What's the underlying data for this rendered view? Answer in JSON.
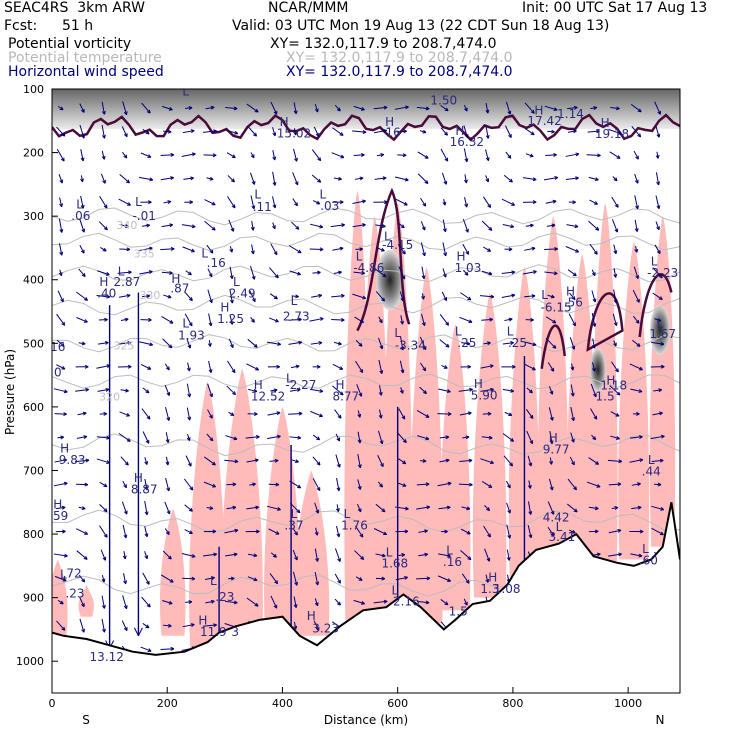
{
  "header": {
    "model": "SEAC4RS  3km ARW",
    "org": "NCAR/MMM",
    "init": "Init: 00 UTC Sat 17 Aug 13",
    "fcst_label": "Fcst:",
    "fcst_value": "51 h",
    "valid": "Valid: 03 UTC Mon 19 Aug 13 (22 CDT Sun 18 Aug 13)",
    "fields": [
      {
        "name": "Potential vorticity",
        "xy": "XY= 132.0,117.9 to 208.7,474.0"
      },
      {
        "name": "Potential temperature",
        "xy": "XY= 132.0,117.9 to 208.7,474.0"
      },
      {
        "name": "Horizontal wind speed",
        "xy": "XY= 132.0,117.9 to 208.7,474.0"
      }
    ]
  },
  "chart_data": {
    "type": "cross-section",
    "xlabel": "Distance (km)",
    "ylabel": "Pressure (hPa)",
    "x_ticks": [
      0,
      200,
      400,
      600,
      800,
      1000
    ],
    "y_ticks": [
      100,
      200,
      300,
      400,
      500,
      600,
      700,
      800,
      900,
      1000
    ],
    "xlim": [
      0,
      1090
    ],
    "ylim": [
      1050,
      100
    ],
    "left_end_label": "S",
    "right_end_label": "N",
    "colors": {
      "terrain": "#000000",
      "pv_contour": "#4a0a3a",
      "shading": "#ffb7b7",
      "theta": "#bdbdbd",
      "wind": "#00007a"
    },
    "theta_labels": [
      {
        "text": "340",
        "x": 130,
        "p": 320
      },
      {
        "text": "335",
        "x": 160,
        "p": 365
      },
      {
        "text": "330",
        "x": 170,
        "p": 430
      },
      {
        "text": "325",
        "x": 125,
        "p": 510
      },
      {
        "text": "320",
        "x": 100,
        "p": 590
      }
    ],
    "hl_labels": [
      {
        "text": "L",
        "x": 48,
        "p": 288
      },
      {
        "text": ".06",
        "x": 50,
        "p": 306
      },
      {
        "text": "L",
        "x": 150,
        "p": 284
      },
      {
        "text": "-.01",
        "x": 160,
        "p": 306
      },
      {
        "text": "L",
        "x": 357,
        "p": 272
      },
      {
        "text": ".11",
        "x": 365,
        "p": 292
      },
      {
        "text": "L",
        "x": 470,
        "p": 272
      },
      {
        "text": ".03",
        "x": 482,
        "p": 290
      },
      {
        "text": "H",
        "x": 403,
        "p": 158
      },
      {
        "text": "15.02",
        "x": 420,
        "p": 176
      },
      {
        "text": "H",
        "x": 586,
        "p": 158
      },
      {
        "text": "16",
        "x": 592,
        "p": 175
      },
      {
        "text": "H",
        "x": 708,
        "p": 172
      },
      {
        "text": "16.32",
        "x": 720,
        "p": 190
      },
      {
        "text": "H",
        "x": 845,
        "p": 140
      },
      {
        "text": "17.42",
        "x": 855,
        "p": 157
      },
      {
        "text": "H",
        "x": 960,
        "p": 160
      },
      {
        "text": "19.18",
        "x": 972,
        "p": 177
      },
      {
        "text": "1.50",
        "x": 680,
        "p": 124
      },
      {
        "text": "1.14",
        "x": 900,
        "p": 146
      },
      {
        "text": "L",
        "x": 232,
        "p": 110
      },
      {
        "text": "L",
        "x": 582,
        "p": 338
      },
      {
        "text": "-4.15",
        "x": 600,
        "p": 352
      },
      {
        "text": "L",
        "x": 533,
        "p": 370
      },
      {
        "text": "-4.86",
        "x": 550,
        "p": 388
      },
      {
        "text": "H",
        "x": 710,
        "p": 370
      },
      {
        "text": "1.03",
        "x": 722,
        "p": 388
      },
      {
        "text": "L",
        "x": 265,
        "p": 365
      },
      {
        "text": ".16",
        "x": 285,
        "p": 380
      },
      {
        "text": "L",
        "x": 120,
        "p": 393
      },
      {
        "text": "2.87",
        "x": 130,
        "p": 410
      },
      {
        "text": "H",
        "x": 90,
        "p": 410
      },
      {
        "text": ".40",
        "x": 95,
        "p": 428
      },
      {
        "text": "H",
        "x": 215,
        "p": 405
      },
      {
        "text": ".87",
        "x": 222,
        "p": 420
      },
      {
        "text": "L",
        "x": 320,
        "p": 410
      },
      {
        "text": "2.49",
        "x": 330,
        "p": 428
      },
      {
        "text": "L",
        "x": 420,
        "p": 440
      },
      {
        "text": "2.73",
        "x": 424,
        "p": 464
      },
      {
        "text": "H",
        "x": 300,
        "p": 450
      },
      {
        "text": "1.25",
        "x": 310,
        "p": 468
      },
      {
        "text": "L",
        "x": 232,
        "p": 475
      },
      {
        "text": "1.93",
        "x": 242,
        "p": 494
      },
      {
        "text": "L",
        "x": 855,
        "p": 430
      },
      {
        "text": "-6.15",
        "x": 875,
        "p": 450
      },
      {
        "text": "H",
        "x": 900,
        "p": 425
      },
      {
        "text": ".56",
        "x": 905,
        "p": 442
      },
      {
        "text": "L",
        "x": 1045,
        "p": 378
      },
      {
        "text": "-2.23",
        "x": 1060,
        "p": 396
      },
      {
        "text": "L",
        "x": 1055,
        "p": 475
      },
      {
        "text": "1.67",
        "x": 1060,
        "p": 492
      },
      {
        "text": "L",
        "x": 600,
        "p": 490
      },
      {
        "text": "-3.34",
        "x": 622,
        "p": 510
      },
      {
        "text": "L",
        "x": 705,
        "p": 488
      },
      {
        "text": ".25",
        "x": 720,
        "p": 506
      },
      {
        "text": "L",
        "x": 795,
        "p": 488
      },
      {
        "text": ".25",
        "x": 808,
        "p": 506
      },
      {
        "text": "16",
        "x": 10,
        "p": 512
      },
      {
        "text": "0",
        "x": 10,
        "p": 552
      },
      {
        "text": "H",
        "x": 358,
        "p": 572
      },
      {
        "text": "12.52",
        "x": 375,
        "p": 590
      },
      {
        "text": "L",
        "x": 412,
        "p": 562
      },
      {
        "text": "-2.27",
        "x": 432,
        "p": 572
      },
      {
        "text": "H",
        "x": 500,
        "p": 572
      },
      {
        "text": "8.77",
        "x": 510,
        "p": 590
      },
      {
        "text": "H",
        "x": 740,
        "p": 570
      },
      {
        "text": "5.90",
        "x": 750,
        "p": 588
      },
      {
        "text": "H",
        "x": 970,
        "p": 565
      },
      {
        "text": "1.18",
        "x": 975,
        "p": 573
      },
      {
        "text": "1.5",
        "x": 960,
        "p": 590
      },
      {
        "text": "H",
        "x": 22,
        "p": 672
      },
      {
        "text": "9.83",
        "x": 35,
        "p": 690
      },
      {
        "text": "H",
        "x": 870,
        "p": 655
      },
      {
        "text": "9.77",
        "x": 875,
        "p": 673
      },
      {
        "text": "L",
        "x": 1040,
        "p": 690
      },
      {
        "text": ".44",
        "x": 1040,
        "p": 708
      },
      {
        "text": "H",
        "x": 150,
        "p": 718
      },
      {
        "text": "8.87",
        "x": 160,
        "p": 736
      },
      {
        "text": "H",
        "x": 10,
        "p": 760
      },
      {
        "text": "59",
        "x": 15,
        "p": 778
      },
      {
        "text": "L",
        "x": 420,
        "p": 775
      },
      {
        "text": ".37",
        "x": 420,
        "p": 793
      },
      {
        "text": "L",
        "x": 512,
        "p": 775
      },
      {
        "text": "1.76",
        "x": 525,
        "p": 793
      },
      {
        "text": "4.42",
        "x": 875,
        "p": 780
      },
      {
        "text": "L",
        "x": 880,
        "p": 795
      },
      {
        "text": "3.41",
        "x": 885,
        "p": 811
      },
      {
        "text": "L",
        "x": 585,
        "p": 835
      },
      {
        "text": "1.68",
        "x": 595,
        "p": 853
      },
      {
        "text": "L",
        "x": 690,
        "p": 832
      },
      {
        "text": ".16",
        "x": 695,
        "p": 850
      },
      {
        "text": "L",
        "x": 1030,
        "p": 830
      },
      {
        "text": ".60",
        "x": 1035,
        "p": 848
      },
      {
        "text": "L",
        "x": 20,
        "p": 870
      },
      {
        "text": ".72",
        "x": 35,
        "p": 868
      },
      {
        "text": ".23",
        "x": 40,
        "p": 900
      },
      {
        "text": "H",
        "x": 765,
        "p": 875
      },
      {
        "text": "1.3",
        "x": 760,
        "p": 893
      },
      {
        "text": "1.08",
        "x": 790,
        "p": 893
      },
      {
        "text": "L",
        "x": 280,
        "p": 880
      },
      {
        "text": ".23",
        "x": 300,
        "p": 905
      },
      {
        "text": "L",
        "x": 595,
        "p": 895
      },
      {
        "text": "2.16",
        "x": 615,
        "p": 912
      },
      {
        "text": "1.5",
        "x": 705,
        "p": 928
      },
      {
        "text": "H",
        "x": 450,
        "p": 935
      },
      {
        "text": "3.23",
        "x": 475,
        "p": 955
      },
      {
        "text": "H",
        "x": 262,
        "p": 942
      },
      {
        "text": "11.9",
        "x": 280,
        "p": 960
      },
      {
        "text": "3",
        "x": 318,
        "p": 960
      },
      {
        "text": "13.12",
        "x": 95,
        "p": 1000
      }
    ]
  }
}
